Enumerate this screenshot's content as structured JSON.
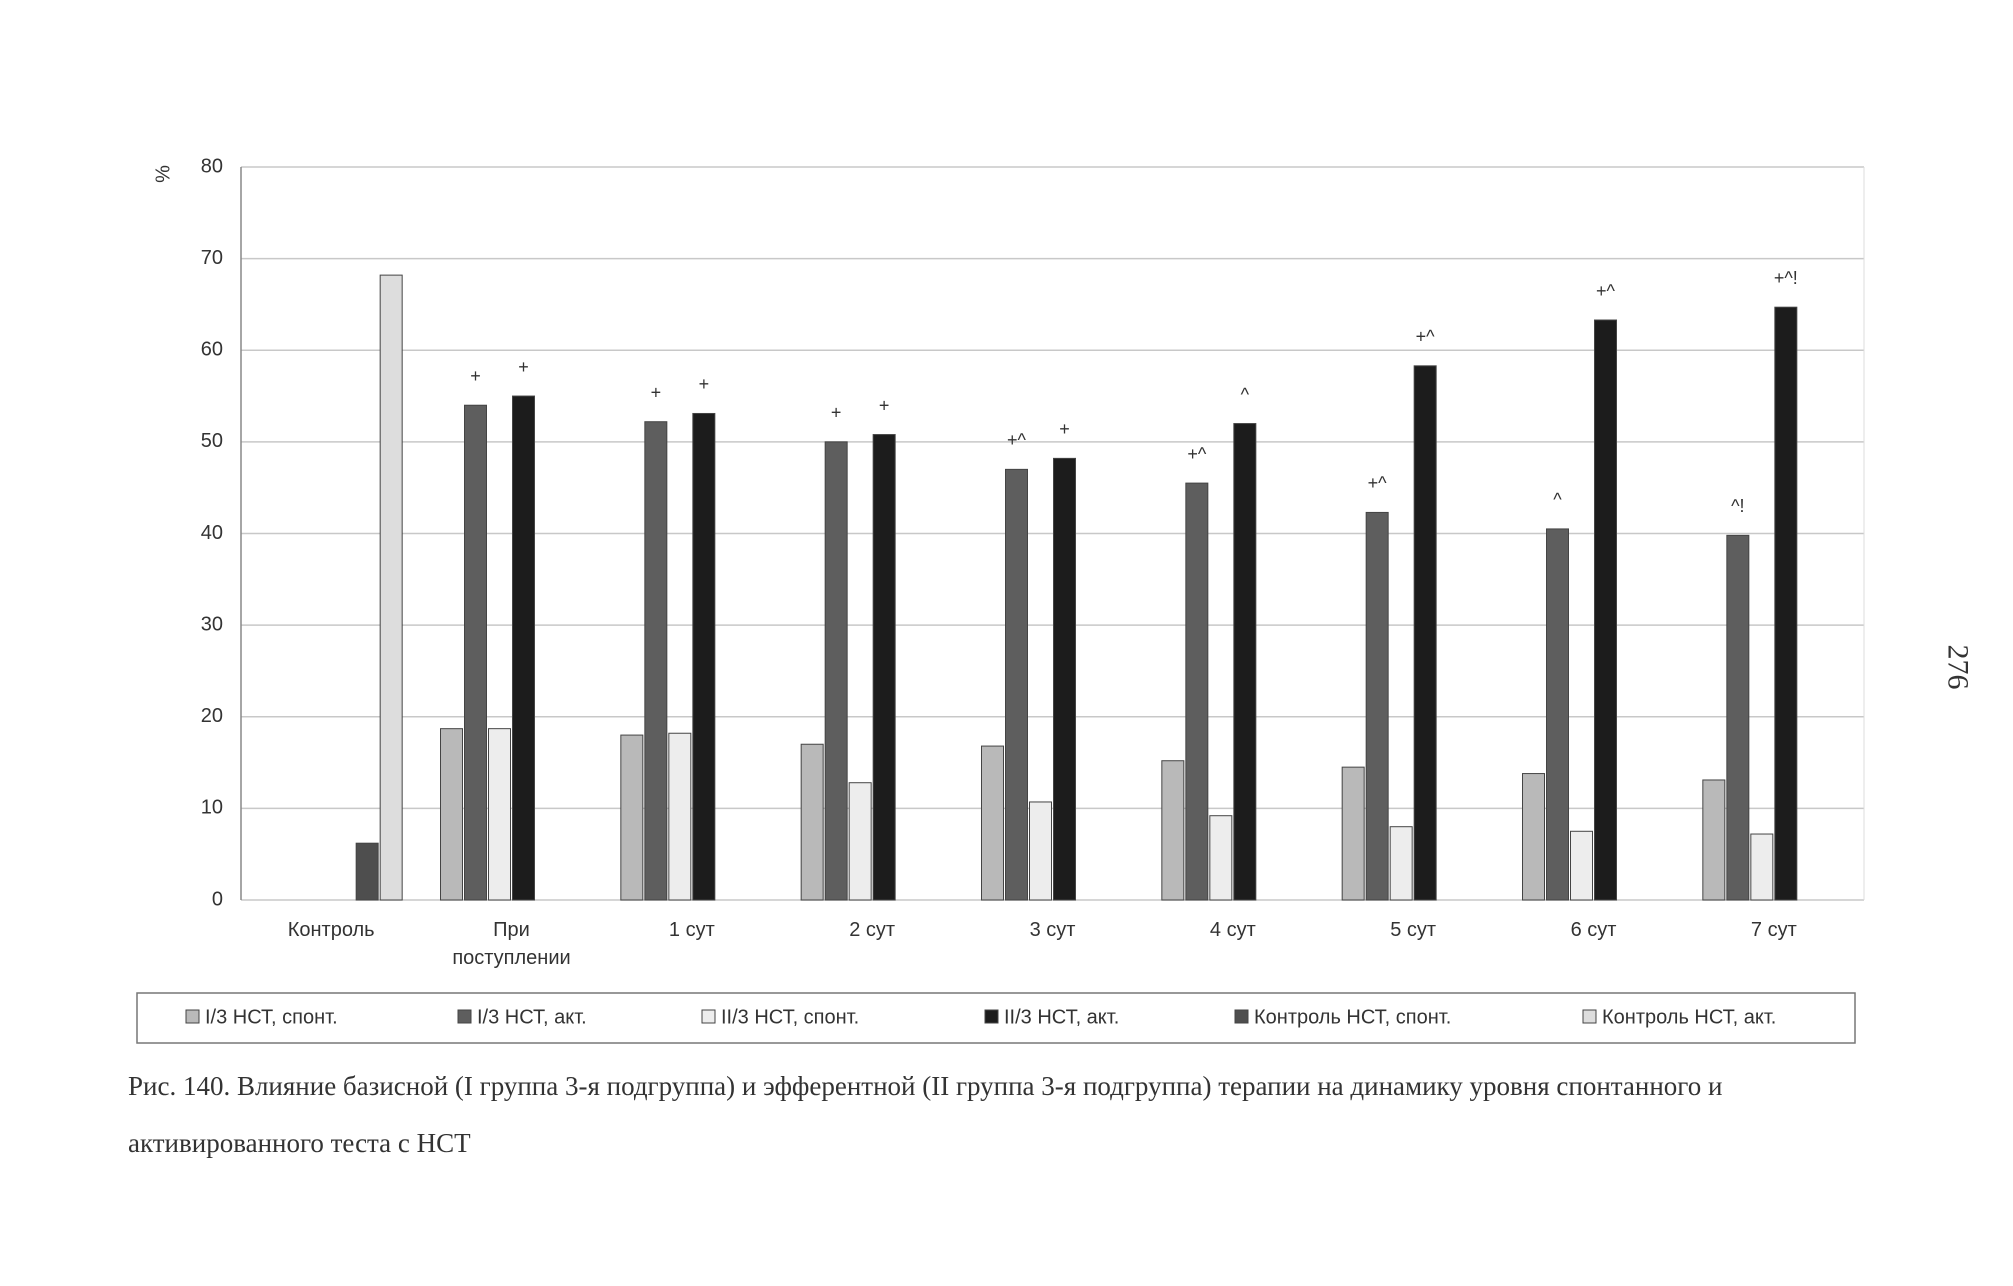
{
  "chart_data": {
    "type": "bar",
    "ylabel": "%",
    "categories": [
      "Контроль",
      "При поступлении",
      "1 сут",
      "2 сут",
      "3 сут",
      "4 сут",
      "5 сут",
      "6 сут",
      "7 сут"
    ],
    "series": [
      {
        "name": "I/3 НСТ, спонт.",
        "color": "#b9b9b9",
        "values": [
          null,
          18.7,
          18,
          17,
          16.8,
          15.2,
          14.5,
          13.8,
          13.1
        ]
      },
      {
        "name": "I/3 НСТ, акт.",
        "color": "#5e5e5e",
        "values": [
          null,
          54,
          52.2,
          50,
          47,
          45.5,
          42.3,
          40.5,
          39.8
        ],
        "annotations": [
          null,
          "+",
          "+",
          "+",
          "+^",
          "+^",
          "+^",
          "^",
          "^!"
        ]
      },
      {
        "name": "II/3 НСТ, спонт.",
        "color": "#ededed",
        "values": [
          null,
          18.7,
          18.2,
          12.8,
          10.7,
          9.2,
          8,
          7.5,
          7.2
        ]
      },
      {
        "name": "II/3 НСТ, акт.",
        "color": "#1c1c1c",
        "values": [
          null,
          55,
          53.1,
          50.8,
          48.2,
          52,
          58.3,
          63.3,
          64.7
        ],
        "annotations": [
          null,
          "+",
          "+",
          "+",
          "+",
          "^",
          "+^",
          "+^",
          "+^!"
        ]
      },
      {
        "name": "Контроль НСТ, спонт.",
        "color": "#4e4e4e",
        "values": [
          6.2,
          null,
          null,
          null,
          null,
          null,
          null,
          null,
          null
        ]
      },
      {
        "name": "Контроль НСТ, акт.",
        "color": "#dddddd",
        "values": [
          68.2,
          null,
          null,
          null,
          null,
          null,
          null,
          null,
          null
        ]
      }
    ],
    "ylim": [
      0,
      80
    ],
    "yticks": [
      0,
      10,
      20,
      30,
      40,
      50,
      60,
      70,
      80
    ],
    "grid": true,
    "legend": "bottom"
  },
  "caption": "Рис. 140. Влияние базисной (I группа 3-я подгруппа) и эфферентной (II группа 3-я подгруппа) терапии на динамику уровня спонтанного и активированного теста с НСТ",
  "page_number": "276"
}
